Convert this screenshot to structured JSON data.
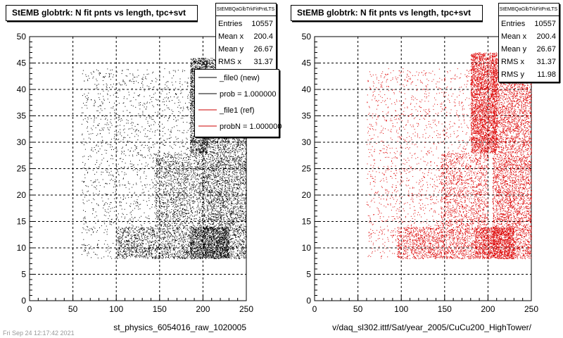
{
  "footer": "Fri Sep 24 12:17:42 2021",
  "chart_data": [
    {
      "type": "scatter",
      "title": "StEMB globtrk: N fit pnts vs length, tpc+svt",
      "xlabel": "st_physics_6054016_raw_1020005",
      "ylabel": "",
      "xlim": [
        0,
        250
      ],
      "ylim": [
        0,
        50
      ],
      "xticks": [
        "0",
        "50",
        "100",
        "150",
        "200",
        "250"
      ],
      "yticks": [
        "0",
        "5",
        "10",
        "15",
        "20",
        "25",
        "30",
        "35",
        "40",
        "45",
        "50"
      ],
      "grid": true,
      "marker_color": "#000000",
      "stats": {
        "name": "StEMBQaGlbTrkFitPntLTS",
        "rows": [
          {
            "label": "Entries",
            "value": "10557"
          },
          {
            "label": "Mean x",
            "value": "200.4"
          },
          {
            "label": "Mean y",
            "value": "26.67"
          },
          {
            "label": "RMS x",
            "value": "31.37"
          }
        ]
      },
      "legend": [
        {
          "label": "_file0 (new)",
          "color": "#000000"
        },
        {
          "label": "prob = 1.000000",
          "color": "#000000"
        },
        {
          "label": "_file1 (ref)",
          "color": "#cc0000"
        },
        {
          "label": "probN = 1.000000",
          "color": "#cc0000"
        }
      ],
      "density_regions": [
        {
          "x_range": [
            185,
            205
          ],
          "y_range": [
            28,
            46
          ],
          "density": 0.9
        },
        {
          "x_range": [
            185,
            230
          ],
          "y_range": [
            8,
            14
          ],
          "density": 1.0
        },
        {
          "x_range": [
            200,
            250
          ],
          "y_range": [
            8,
            46
          ],
          "density": 0.5
        },
        {
          "x_range": [
            100,
            185
          ],
          "y_range": [
            8,
            14
          ],
          "density": 0.4
        },
        {
          "x_range": [
            145,
            200
          ],
          "y_range": [
            14,
            28
          ],
          "density": 0.3
        },
        {
          "x_range": [
            60,
            200
          ],
          "y_range": [
            8,
            44
          ],
          "density": 0.07
        }
      ]
    },
    {
      "type": "scatter",
      "title": "StEMB globtrk: N fit pnts vs length, tpc+svt",
      "xlabel": "v/daq_sl302.ittf/Sat/year_2005/CuCu200_HighTower/",
      "ylabel": "",
      "xlim": [
        0,
        250
      ],
      "ylim": [
        0,
        50
      ],
      "xticks": [
        "0",
        "50",
        "100",
        "150",
        "200",
        "250"
      ],
      "yticks": [
        "0",
        "5",
        "10",
        "15",
        "20",
        "25",
        "30",
        "35",
        "40",
        "45",
        "50"
      ],
      "grid": true,
      "marker_color": "#dd0000",
      "stats": {
        "name": "StEMBQaGlbTrkFitPntLTS",
        "rows": [
          {
            "label": "Entries",
            "value": "10557"
          },
          {
            "label": "Mean x",
            "value": "200.4"
          },
          {
            "label": "Mean y",
            "value": "26.67"
          },
          {
            "label": "RMS x",
            "value": "31.37"
          },
          {
            "label": "RMS y",
            "value": "11.98"
          }
        ]
      },
      "density_regions": [
        {
          "x_range": [
            180,
            210
          ],
          "y_range": [
            28,
            47
          ],
          "density": 1.0
        },
        {
          "x_range": [
            185,
            230
          ],
          "y_range": [
            8,
            14
          ],
          "density": 1.0
        },
        {
          "x_range": [
            205,
            250
          ],
          "y_range": [
            8,
            46
          ],
          "density": 0.55
        },
        {
          "x_range": [
            95,
            185
          ],
          "y_range": [
            8,
            14
          ],
          "density": 0.45
        },
        {
          "x_range": [
            145,
            200
          ],
          "y_range": [
            14,
            28
          ],
          "density": 0.3
        },
        {
          "x_range": [
            60,
            200
          ],
          "y_range": [
            8,
            44
          ],
          "density": 0.07
        }
      ]
    }
  ]
}
